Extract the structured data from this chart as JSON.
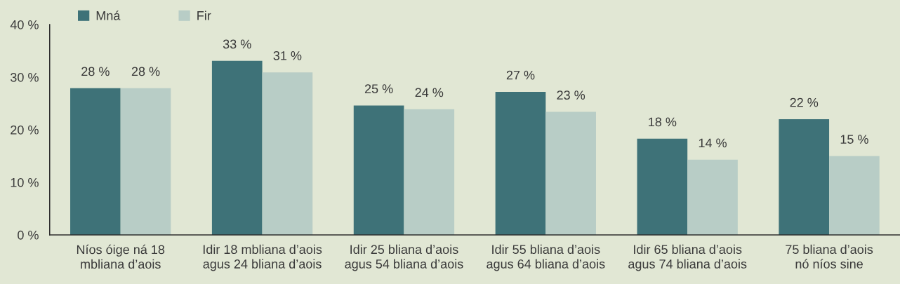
{
  "chart_data": {
    "type": "bar",
    "categories": [
      "Níos óige ná 18\nmbliana d’aois",
      "Idir 18 mbliana d’aois\nagus 24 bliana d’aois",
      "Idir 25 bliana d’aois\nagus 54 bliana d’aois",
      "Idir 55 bliana d’aois\nagus 64 bliana d’aois",
      "Idir 65 bliana d’aois\nagus 74 bliana d’aois",
      "75 bliana d’aois\nnó níos sine"
    ],
    "series": [
      {
        "name": "Mná",
        "color": "#3e7278",
        "values": [
          27.9,
          33.1,
          24.6,
          27.2,
          18.3,
          22.0
        ],
        "value_labels": [
          "28 %",
          "33 %",
          "25 %",
          "27 %",
          "18 %",
          "22 %"
        ]
      },
      {
        "name": "Fir",
        "color": "#b8cdc6",
        "values": [
          27.9,
          30.9,
          23.9,
          23.4,
          14.3,
          15.0
        ],
        "value_labels": [
          "28 %",
          "31 %",
          "24 %",
          "23 %",
          "14 %",
          "15 %"
        ]
      }
    ],
    "ylim": [
      0,
      40
    ],
    "yticks": [
      {
        "value": 0,
        "label": "0 %"
      },
      {
        "value": 10,
        "label": "10 %"
      },
      {
        "value": 20,
        "label": "20 %"
      },
      {
        "value": 30,
        "label": "30 %"
      },
      {
        "value": 40,
        "label": "40 %"
      }
    ],
    "legend": "top left"
  }
}
